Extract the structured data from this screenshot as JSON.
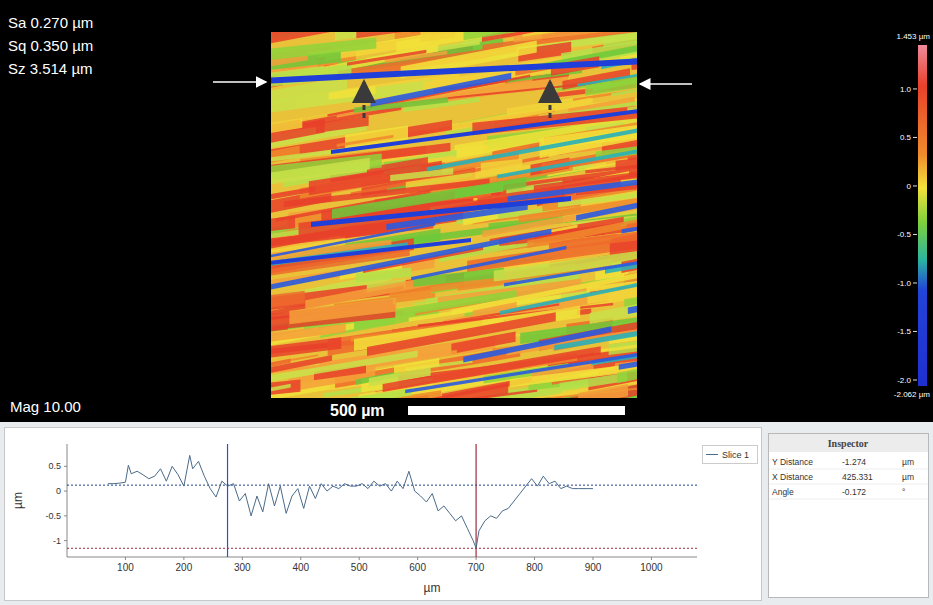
{
  "stats": [
    "Sa 0.270 µm",
    "Sq 0.350 µm",
    "Sz 3.514 µm"
  ],
  "magnification": "Mag 10.00",
  "scale_bar": "500 µm",
  "chart_data": [
    {
      "type": "colorbar",
      "ylim": [
        -2.062,
        1.453
      ],
      "yticks": [
        {
          "value": 1,
          "label": "1.0"
        },
        0.5,
        0,
        -0.5,
        {
          "value": -1,
          "label": "-1.0"
        },
        -1.5,
        {
          "value": -2,
          "label": "-2.0"
        }
      ],
      "range_labels": [
        "1.453 µm",
        "-2.062 µm"
      ]
    },
    {
      "type": "line",
      "x_label": "µm",
      "y_label": "µm",
      "x": [
        70,
        80,
        90,
        100,
        105,
        110,
        120,
        130,
        140,
        150,
        160,
        170,
        180,
        190,
        200,
        210,
        215,
        225,
        235,
        245,
        255,
        265,
        275,
        285,
        295,
        305,
        315,
        325,
        335,
        345,
        355,
        365,
        375,
        385,
        395,
        405,
        415,
        425,
        435,
        445,
        455,
        465,
        475,
        485,
        495,
        505,
        515,
        525,
        535,
        545,
        555,
        565,
        575,
        585,
        595,
        605,
        615,
        625,
        635,
        645,
        655,
        665,
        675,
        685,
        695,
        700,
        705,
        715,
        725,
        735,
        745,
        755,
        765,
        775,
        785,
        795,
        805,
        815,
        825,
        835,
        845,
        855,
        865,
        875,
        890,
        900
      ],
      "series": [
        {
          "name": "Slice 1",
          "color": "#4a6b8a",
          "values": [
            0.15,
            0.15,
            0.16,
            0.18,
            0.52,
            0.35,
            0.4,
            0.33,
            0.25,
            0.3,
            0.45,
            0.2,
            0.5,
            0.33,
            0.1,
            0.72,
            0.45,
            0.6,
            0.3,
            0.05,
            -0.12,
            0.2,
            0.1,
            0.15,
            -0.2,
            -0.05,
            -0.5,
            -0.1,
            -0.42,
            0.15,
            -0.3,
            0.1,
            -0.45,
            -0.1,
            0.05,
            -0.35,
            0.1,
            -0.15,
            0.15,
            0,
            0.1,
            0.05,
            0.15,
            0.1,
            0.1,
            0.15,
            0.05,
            0.2,
            0.1,
            0.15,
            0,
            0.2,
            0.05,
            0.4,
            0,
            -0.1,
            -0.22,
            -0.05,
            -0.4,
            -0.3,
            -0.45,
            -0.6,
            -0.5,
            -0.75,
            -1.0,
            -1.15,
            -0.8,
            -0.6,
            -0.5,
            -0.55,
            -0.4,
            -0.35,
            -0.2,
            -0.05,
            0.1,
            0.25,
            0.1,
            0.3,
            0.15,
            0.2,
            0.05,
            0.1,
            0.05,
            0.05,
            0.05,
            0.05
          ]
        }
      ],
      "xlim": [
        0,
        1078
      ],
      "xticks": [
        100,
        200,
        300,
        400,
        500,
        600,
        700,
        800,
        900,
        1000
      ],
      "ylim": [
        -1.33,
        0.95
      ],
      "yticks": [
        -1,
        -0.5,
        0,
        0.5
      ],
      "cursors": [
        {
          "axis": "x",
          "value": 274.7,
          "color": "#2f4fd8"
        },
        {
          "axis": "x",
          "value": 700.0,
          "color": "#9b2c3c"
        },
        {
          "axis": "y",
          "value": 0.12,
          "color": "#1f3f8f"
        },
        {
          "axis": "y",
          "value": -1.154,
          "color": "#9b2c3c"
        }
      ],
      "legend": "right",
      "grid": false
    }
  ],
  "inspector": {
    "title": "Inspector",
    "rows": [
      [
        "Y Distance",
        "-1.274",
        "µm"
      ],
      [
        "X Distance",
        "425.331",
        "µm"
      ],
      [
        "Angle",
        "-0.172",
        "°"
      ]
    ]
  }
}
